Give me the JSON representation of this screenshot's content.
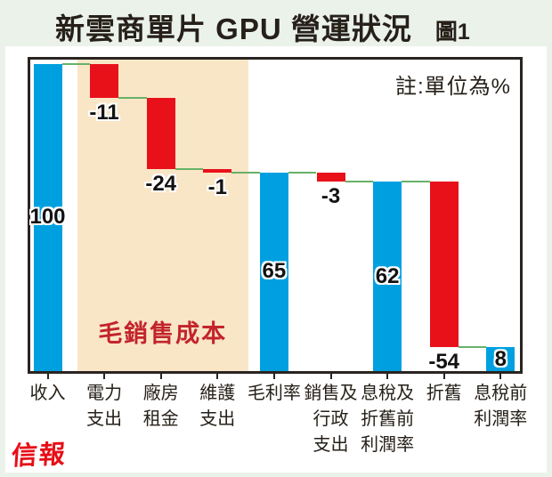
{
  "page": {
    "title": "新雲商單片 GPU 營運狀況",
    "figure_label": "圖1",
    "note": "註:單位為%",
    "shade_label": "毛銷售成本",
    "brand": "信報"
  },
  "colors": {
    "background": "#eaf2ea",
    "panel": "#ffffff",
    "bar_total": "#00a0e0",
    "bar_delta": "#e8111a",
    "shade": "#f9e6c7",
    "connector": "#68b167",
    "plot_border": "#2a2421",
    "text": "#262019",
    "shade_label_color": "#c3242c",
    "brand_color": "#e60f17"
  },
  "chart_data": {
    "type": "bar",
    "subtype": "waterfall",
    "title": "新雲商單片 GPU 營運狀況",
    "note": "註:單位為%",
    "unit": "%",
    "ylim": [
      0,
      100
    ],
    "grid": false,
    "categories": [
      "收入",
      "電力支出",
      "廠房租金",
      "維護支出",
      "毛利率",
      "銷售及行政支出",
      "息稅及折舊前利潤率",
      "折舊",
      "息稅前利潤率"
    ],
    "values": [
      100,
      -11,
      -24,
      -1,
      65,
      -3,
      62,
      -54,
      8
    ],
    "bars": [
      {
        "category": "收入",
        "label_lines": [
          "收入"
        ],
        "display": "100",
        "value": 100,
        "type": "total",
        "from": 0,
        "to": 100,
        "label_pos": "inside"
      },
      {
        "category": "電力支出",
        "label_lines": [
          "電力",
          "支出"
        ],
        "display": "-11",
        "value": -11,
        "type": "delta",
        "from": 100,
        "to": 89,
        "label_pos": "below"
      },
      {
        "category": "廠房租金",
        "label_lines": [
          "廠房",
          "租金"
        ],
        "display": "-24",
        "value": -24,
        "type": "delta",
        "from": 89,
        "to": 65.7,
        "label_pos": "below"
      },
      {
        "category": "維護支出",
        "label_lines": [
          "維護",
          "支出"
        ],
        "display": "-1",
        "value": -1,
        "type": "delta",
        "from": 65.7,
        "to": 64.6,
        "label_pos": "below"
      },
      {
        "category": "毛利率",
        "label_lines": [
          "毛利率"
        ],
        "display": "65",
        "value": 65,
        "type": "total",
        "from": 0,
        "to": 64.6,
        "label_pos": "inside"
      },
      {
        "category": "銷售及行政支出",
        "label_lines": [
          "銷售及",
          "行政",
          "支出"
        ],
        "display": "-3",
        "value": -3,
        "type": "delta",
        "from": 64.6,
        "to": 61.6,
        "label_pos": "below"
      },
      {
        "category": "息稅及折舊前利潤率",
        "label_lines": [
          "息稅及",
          "折舊前",
          "利潤率"
        ],
        "display": "62",
        "value": 62,
        "type": "total",
        "from": 0,
        "to": 61.6,
        "label_pos": "inside"
      },
      {
        "category": "折舊",
        "label_lines": [
          "折舊"
        ],
        "display": "-54",
        "value": -54,
        "type": "delta",
        "from": 61.6,
        "to": 7.7,
        "label_pos": "below"
      },
      {
        "category": "息稅前利潤率",
        "label_lines": [
          "息稅前",
          "利潤率"
        ],
        "display": "8",
        "value": 8,
        "type": "total",
        "from": 0,
        "to": 7.7,
        "label_pos": "inside"
      }
    ],
    "shade_region": {
      "label": "毛銷售成本",
      "covers_categories": [
        "電力支出",
        "廠房租金",
        "維護支出"
      ]
    },
    "legend": null
  }
}
